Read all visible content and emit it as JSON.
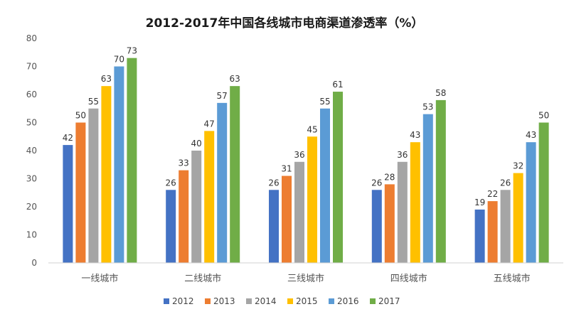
{
  "chart_data": {
    "type": "bar",
    "title": "2012-2017年中国各线城市电商渠道渗透率（%）",
    "categories": [
      "一线城市",
      "二线城市",
      "三线城市",
      "四线城市",
      "五线城市"
    ],
    "series": [
      {
        "name": "2012",
        "color": "#4472C4",
        "values": [
          42,
          26,
          26,
          26,
          19
        ]
      },
      {
        "name": "2013",
        "color": "#ED7D31",
        "values": [
          50,
          33,
          31,
          28,
          22
        ]
      },
      {
        "name": "2014",
        "color": "#A5A5A5",
        "values": [
          55,
          40,
          36,
          36,
          26
        ]
      },
      {
        "name": "2015",
        "color": "#FFC000",
        "values": [
          63,
          47,
          45,
          43,
          32
        ]
      },
      {
        "name": "2016",
        "color": "#5B9BD5",
        "values": [
          70,
          57,
          55,
          53,
          43
        ]
      },
      {
        "name": "2017",
        "color": "#70AD47",
        "values": [
          73,
          63,
          61,
          58,
          50
        ]
      }
    ],
    "ylim": [
      0,
      80
    ],
    "yticks": [
      0,
      10,
      20,
      30,
      40,
      50,
      60,
      70,
      80
    ],
    "grid": false,
    "legend": "bottom"
  }
}
